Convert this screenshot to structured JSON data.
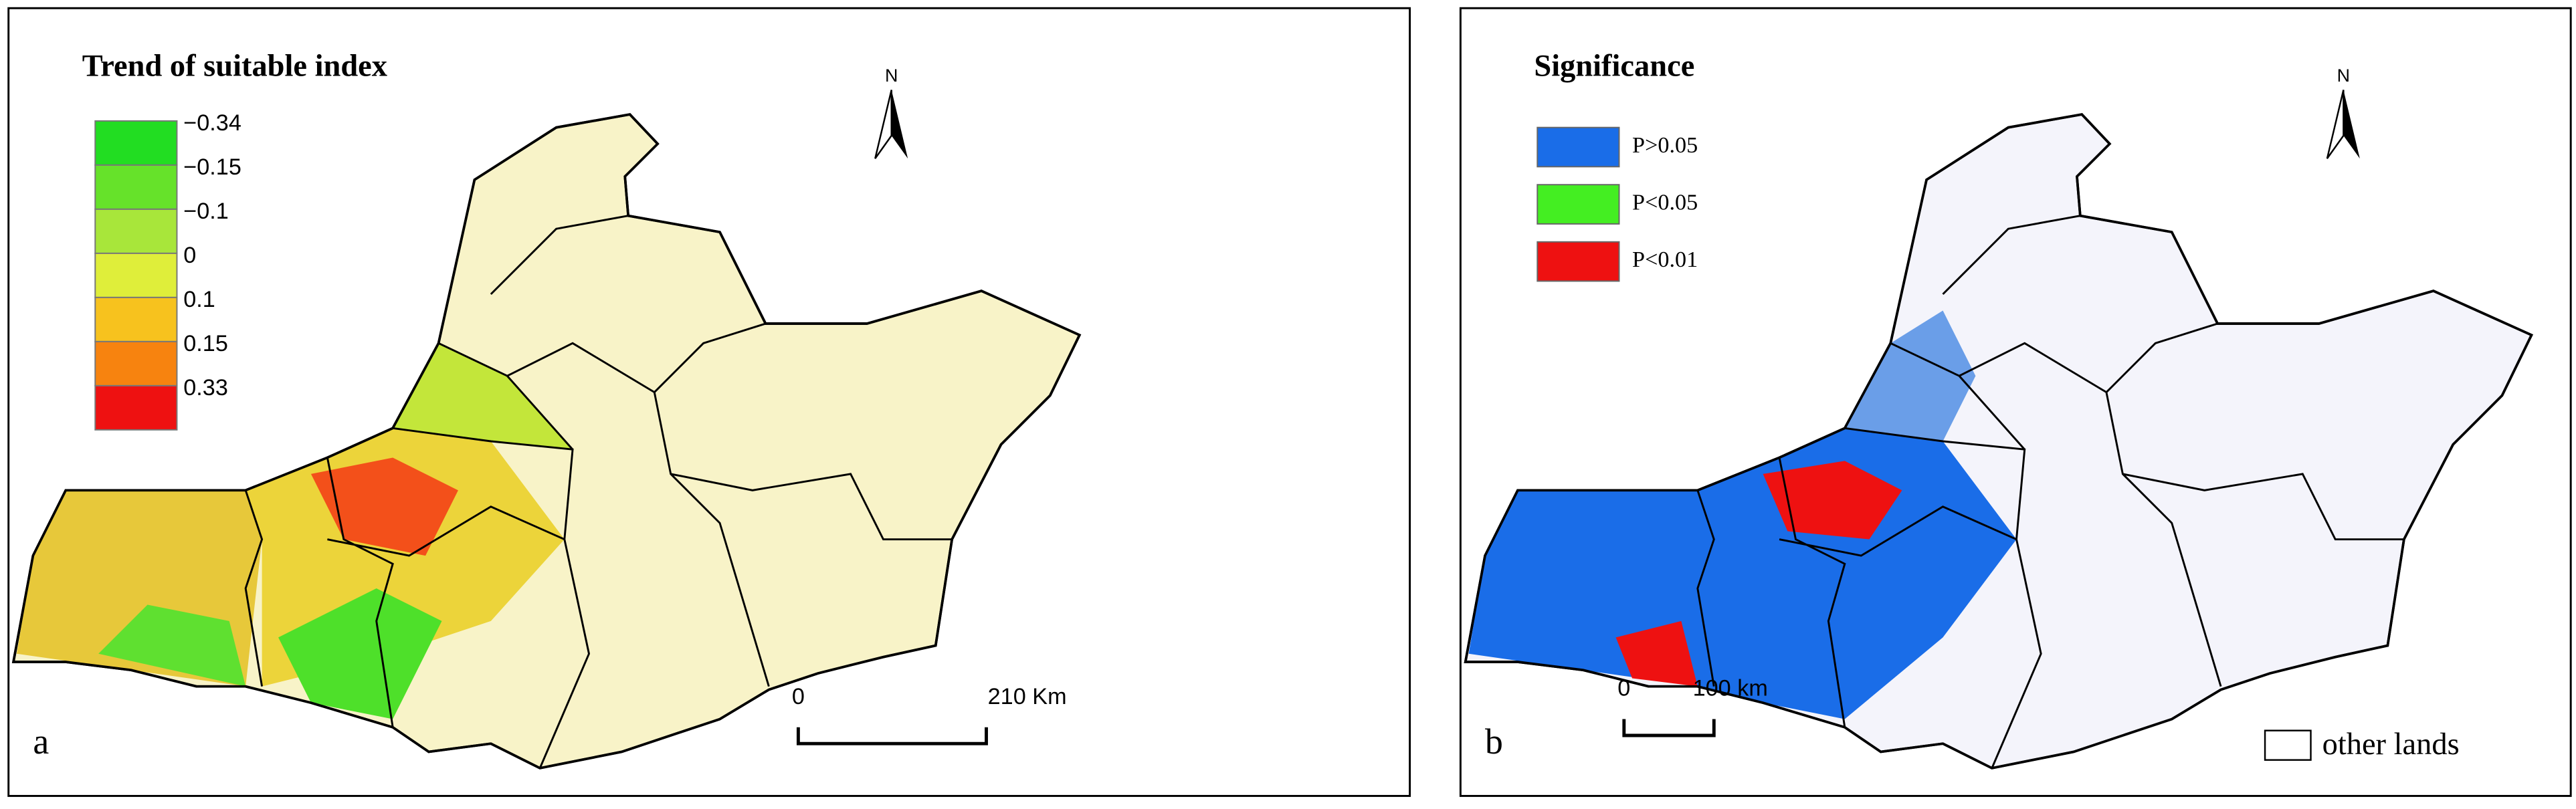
{
  "panels": [
    {
      "letter": "a",
      "legend": {
        "title": "Trend of suitable index",
        "items": [
          {
            "label": "−0.34",
            "color": "#22dd22"
          },
          {
            "label": "−0.15",
            "color": "#66e22a"
          },
          {
            "label": "−0.1",
            "color": "#a8e63a"
          },
          {
            "label": "0",
            "color": "#dfee3a"
          },
          {
            "label": "0.1",
            "color": "#f7c21e"
          },
          {
            "label": "0.15",
            "color": "#f7830f"
          },
          {
            "label": "0.33",
            "color": "#ee1111"
          }
        ]
      },
      "north": "N",
      "scale": {
        "start": "0",
        "end": "210 Km"
      }
    },
    {
      "letter": "b",
      "legend": {
        "title": "Significance",
        "items": [
          {
            "label": "P>0.05",
            "color": "#1a6de8"
          },
          {
            "label": "P<0.05",
            "color": "#44ee22"
          },
          {
            "label": "P<0.01",
            "color": "#ee1111"
          }
        ]
      },
      "north": "N",
      "scale": {
        "start": "0",
        "end": "100 km"
      },
      "note": "other lands"
    }
  ]
}
